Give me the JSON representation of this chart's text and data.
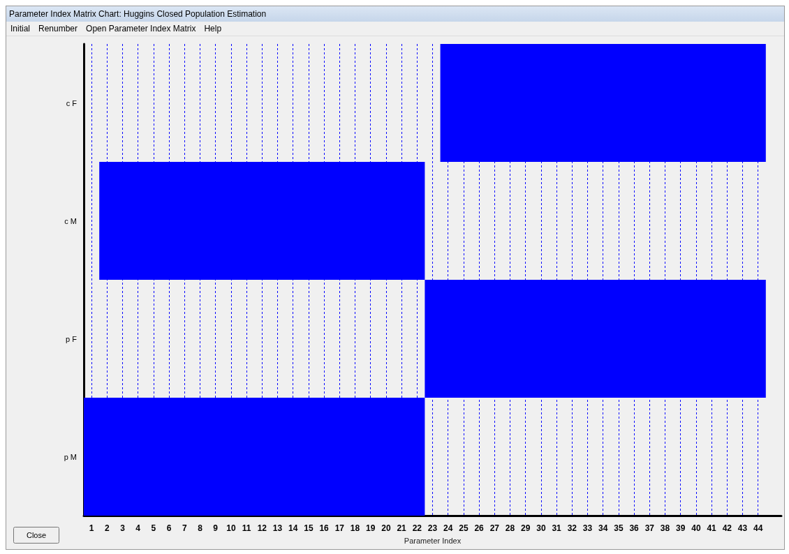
{
  "chart_data": {
    "type": "bar",
    "orientation": "horizontal",
    "title": "Parameter Index Matrix Chart: Huggins Closed Population Estimation",
    "xlabel": "Parameter Index",
    "categories": [
      "c F",
      "c M",
      "p F",
      "p M"
    ],
    "base": [
      23.5,
      1.5,
      22.5,
      0.5
    ],
    "values": [
      21,
      21,
      22,
      22
    ],
    "colors": [
      "#0000ff",
      "#0000ff",
      "#0000ff",
      "#0000ff"
    ],
    "xlim": [
      0.5,
      45.5
    ],
    "xticks": [
      1,
      2,
      3,
      4,
      5,
      6,
      7,
      8,
      9,
      10,
      11,
      12,
      13,
      14,
      15,
      16,
      17,
      18,
      19,
      20,
      21,
      22,
      23,
      24,
      25,
      26,
      27,
      28,
      29,
      30,
      31,
      32,
      33,
      34,
      35,
      36,
      37,
      38,
      39,
      40,
      41,
      42,
      43,
      44
    ],
    "grid": "x",
    "annotations": [
      "Initial",
      "Renumber",
      "Open Parameter Index Matrix",
      "Help",
      "Close"
    ]
  }
}
